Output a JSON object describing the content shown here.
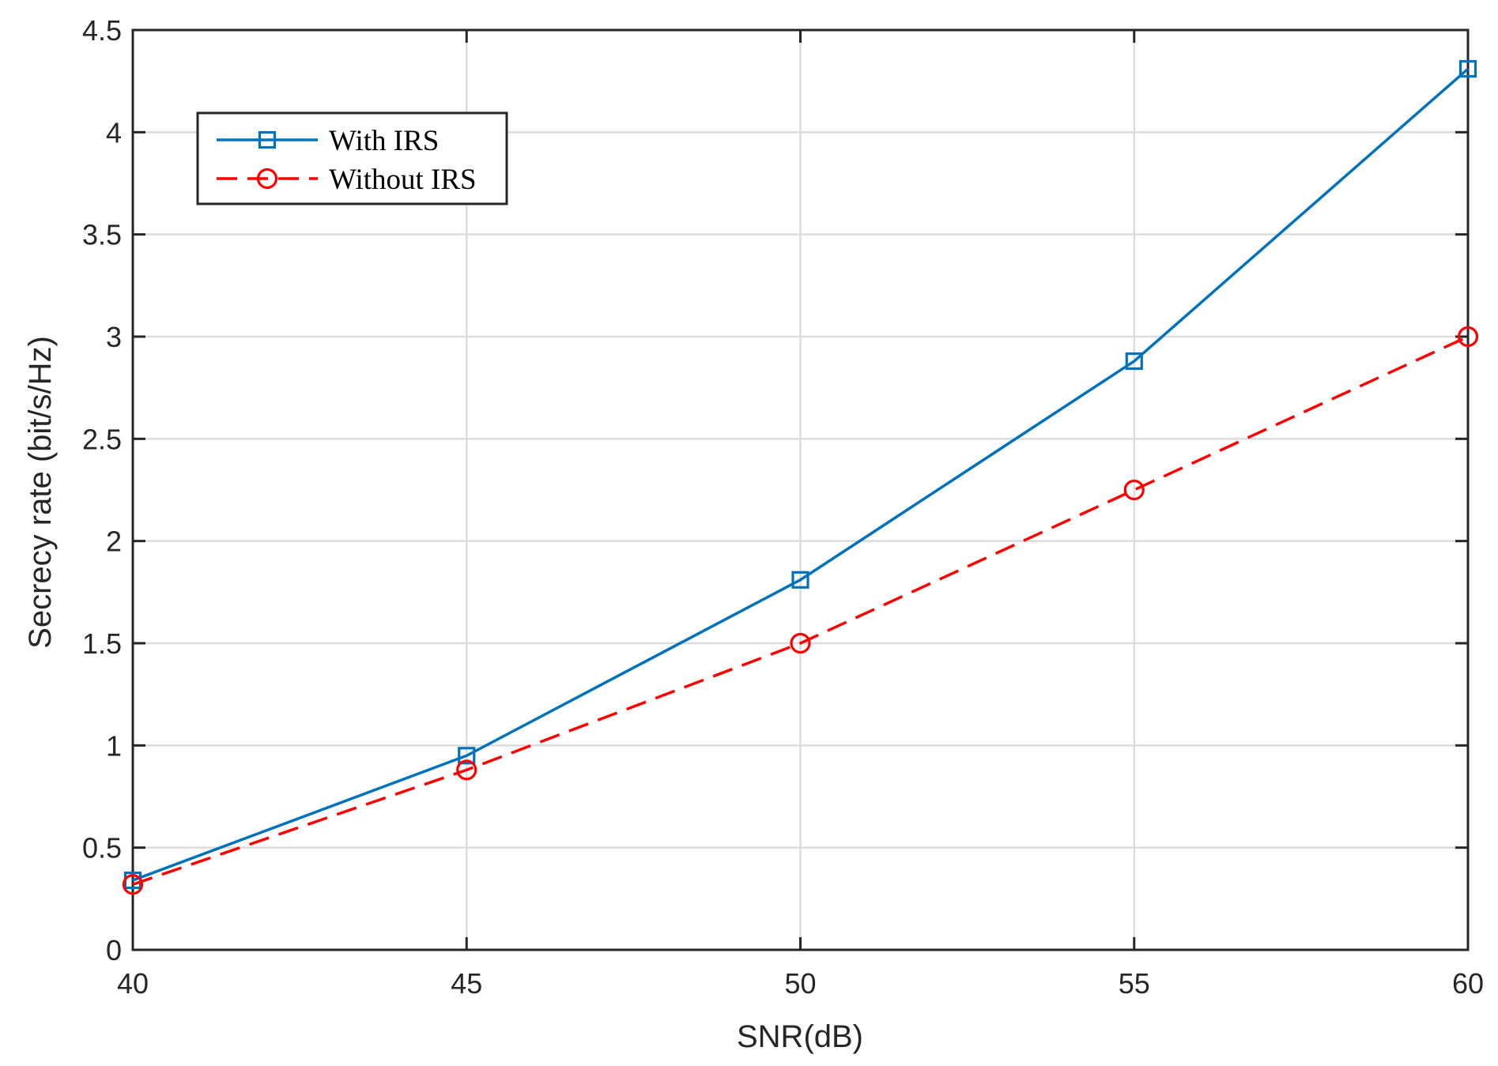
{
  "chart_data": {
    "type": "line",
    "title": "",
    "xlabel": "SNR(dB)",
    "ylabel": "Secrecy rate (bit/s/Hz)",
    "xlim": [
      40,
      60
    ],
    "ylim": [
      0,
      4.5
    ],
    "x": [
      40,
      45,
      50,
      55,
      60
    ],
    "xticks": [
      40,
      45,
      50,
      55,
      60
    ],
    "xtick_labels": [
      "40",
      "45",
      "50",
      "55",
      "60"
    ],
    "yticks": [
      0,
      0.5,
      1,
      1.5,
      2,
      2.5,
      3,
      3.5,
      4,
      4.5
    ],
    "ytick_labels": [
      "0",
      "0.5",
      "1",
      "1.5",
      "2",
      "2.5",
      "3",
      "3.5",
      "4",
      "4.5"
    ],
    "grid": true,
    "legend_position": "top-left",
    "series": [
      {
        "name": "With IRS",
        "values": [
          0.34,
          0.95,
          1.81,
          2.88,
          4.31
        ],
        "color": "#0072BD",
        "line_style": "solid",
        "marker": "square"
      },
      {
        "name": "Without IRS",
        "values": [
          0.32,
          0.88,
          1.5,
          2.25,
          3.0
        ],
        "color": "#FF0000",
        "line_style": "dashed",
        "marker": "circle"
      }
    ]
  }
}
